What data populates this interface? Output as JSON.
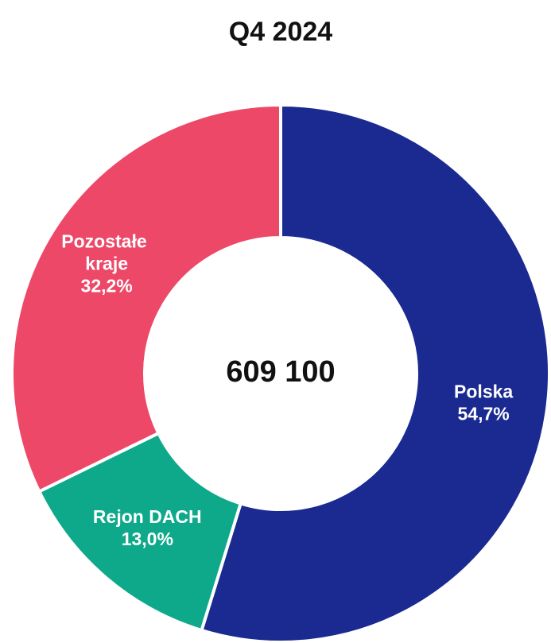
{
  "chart_data": {
    "type": "donut",
    "title": "Q4 2024",
    "center_label": "609 100",
    "categories": [
      "Polska",
      "Rejon DACH",
      "Pozostałe kraje"
    ],
    "values": [
      54.7,
      13.0,
      32.2
    ],
    "value_labels": [
      "54,7%",
      "13,0%",
      "32,2%"
    ],
    "colors": [
      "#1a2a90",
      "#0ea98a",
      "#ee4868"
    ]
  }
}
